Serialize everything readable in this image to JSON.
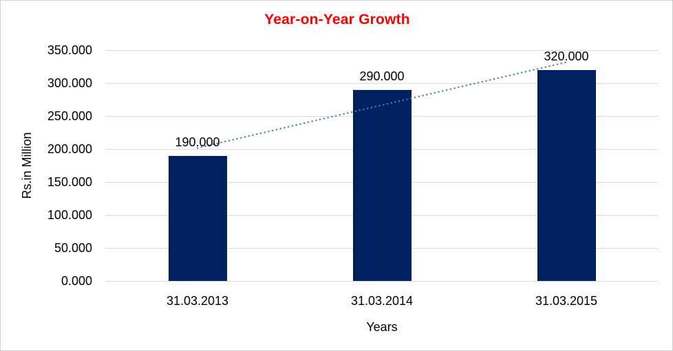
{
  "chart_data": {
    "type": "bar",
    "title": "Year-on-Year Growth",
    "title_color": "#ff0000",
    "ylabel": "Rs.in Million",
    "xlabel": "Years",
    "categories": [
      "31.03.2013",
      "31.03.2014",
      "31.03.2015"
    ],
    "values": [
      190,
      290,
      320
    ],
    "data_labels": [
      "190.000",
      "290.000",
      "320.000"
    ],
    "ylim": [
      0,
      350
    ],
    "yticks": [
      {
        "v": 0,
        "label": "0.000"
      },
      {
        "v": 50,
        "label": "50.000"
      },
      {
        "v": 100,
        "label": "100.000"
      },
      {
        "v": 150,
        "label": "150.000"
      },
      {
        "v": 200,
        "label": "200.000"
      },
      {
        "v": 250,
        "label": "250.000"
      },
      {
        "v": 300,
        "label": "300.000"
      },
      {
        "v": 350,
        "label": "350.000"
      }
    ],
    "grid": true,
    "legend": "none",
    "bar_color": "#002060",
    "gridline_color": "#d9d9d9",
    "axis_line_color": "#d9d9d9",
    "text_color": "#000000",
    "border_color": "#d0d0d0",
    "trendline": {
      "type": "linear",
      "style": "dotted",
      "color": "#4a7ebb"
    }
  }
}
